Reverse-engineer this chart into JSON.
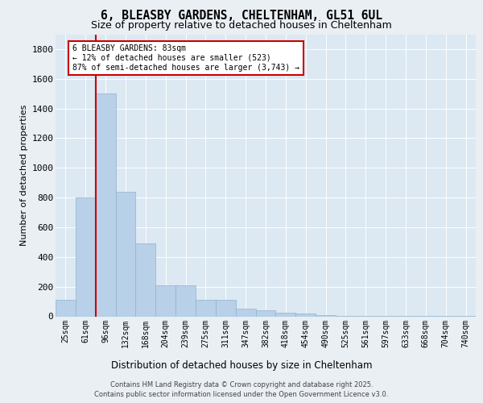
{
  "title_line1": "6, BLEASBY GARDENS, CHELTENHAM, GL51 6UL",
  "title_line2": "Size of property relative to detached houses in Cheltenham",
  "xlabel": "Distribution of detached houses by size in Cheltenham",
  "ylabel": "Number of detached properties",
  "categories": [
    "25sqm",
    "61sqm",
    "96sqm",
    "132sqm",
    "168sqm",
    "204sqm",
    "239sqm",
    "275sqm",
    "311sqm",
    "347sqm",
    "382sqm",
    "418sqm",
    "454sqm",
    "490sqm",
    "525sqm",
    "561sqm",
    "597sqm",
    "633sqm",
    "668sqm",
    "704sqm",
    "740sqm"
  ],
  "values": [
    110,
    800,
    1500,
    840,
    490,
    210,
    210,
    110,
    110,
    50,
    40,
    25,
    20,
    10,
    5,
    3,
    2,
    1,
    1,
    1,
    1
  ],
  "bar_color": "#b8d0e8",
  "bar_edge_color": "#90b4d0",
  "vline_color": "#cc0000",
  "vline_pos": 1.5,
  "annotation_text": "6 BLEASBY GARDENS: 83sqm\n← 12% of detached houses are smaller (523)\n87% of semi-detached houses are larger (3,743) →",
  "annotation_box_edgecolor": "#cc0000",
  "ylim_max": 1900,
  "yticks": [
    0,
    200,
    400,
    600,
    800,
    1000,
    1200,
    1400,
    1600,
    1800
  ],
  "bg_color": "#eaeff4",
  "plot_bg_color": "#dce8f2",
  "grid_color": "#ffffff",
  "footer": "Contains HM Land Registry data © Crown copyright and database right 2025.\nContains public sector information licensed under the Open Government Licence v3.0.",
  "title_fontsize": 10.5,
  "subtitle_fontsize": 9,
  "tick_fontsize": 7,
  "ylabel_fontsize": 8,
  "xlabel_fontsize": 8.5,
  "annot_fontsize": 7,
  "footer_fontsize": 6
}
